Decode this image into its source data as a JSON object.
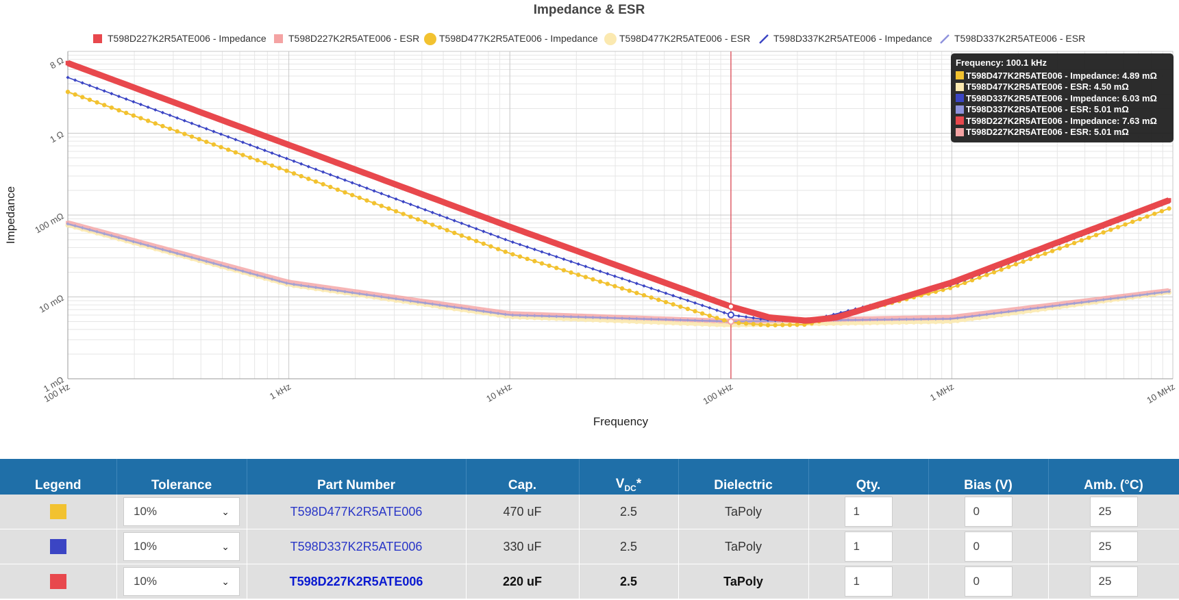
{
  "chart_data": {
    "type": "line",
    "title": "Impedance & ESR",
    "xlabel": "Frequency",
    "ylabel": "Impedance",
    "x_scale": "log",
    "y_scale": "log",
    "x_unit": "Hz",
    "y_unit": "ohm",
    "xlim": [
      100,
      10000000
    ],
    "ylim": [
      0.001,
      10
    ],
    "x_ticks": [
      {
        "value": 100,
        "label": "100 Hz"
      },
      {
        "value": 1000,
        "label": "1 kHz"
      },
      {
        "value": 10000,
        "label": "10 kHz"
      },
      {
        "value": 100000,
        "label": "100 kHz"
      },
      {
        "value": 1000000,
        "label": "1 MHz"
      },
      {
        "value": 10000000,
        "label": "10 MHz"
      }
    ],
    "y_ticks": [
      {
        "value": 0.001,
        "label": "1 mΩ"
      },
      {
        "value": 0.01,
        "label": "10 mΩ"
      },
      {
        "value": 0.1,
        "label": "100 mΩ"
      },
      {
        "value": 1,
        "label": "1 Ω"
      },
      {
        "value": 8,
        "label": "8 Ω"
      }
    ],
    "grid": true,
    "legend_position": "top",
    "crosshair_x": 100100,
    "series": [
      {
        "name": "T598D227K2R5ATE006 - Impedance",
        "color": "#e8484d",
        "marker": "square",
        "x": [
          100,
          1000,
          10000,
          100000,
          150000,
          220000,
          300000,
          1000000,
          10000000
        ],
        "y": [
          7.2,
          0.72,
          0.072,
          0.00763,
          0.0056,
          0.00512,
          0.0056,
          0.015,
          0.158
        ]
      },
      {
        "name": "T598D227K2R5ATE006 - ESR",
        "color": "#f4a3a3",
        "marker": "square",
        "x": [
          100,
          1000,
          10000,
          100000,
          1000000,
          10000000
        ],
        "y": [
          0.08,
          0.015,
          0.0062,
          0.00501,
          0.0056,
          0.012
        ]
      },
      {
        "name": "T598D477K2R5ATE006 - Impedance",
        "color": "#f2c230",
        "marker": "circle",
        "x": [
          100,
          1000,
          10000,
          100000,
          150000,
          220000,
          1000000,
          10000000
        ],
        "y": [
          3.2,
          0.34,
          0.034,
          0.00489,
          0.0045,
          0.0046,
          0.013,
          0.125
        ]
      },
      {
        "name": "T598D477K2R5ATE006 - ESR",
        "color": "#fbe9b0",
        "marker": "circle",
        "x": [
          100,
          1000,
          10000,
          100000,
          1000000,
          10000000
        ],
        "y": [
          0.075,
          0.014,
          0.0057,
          0.0045,
          0.005,
          0.0115
        ]
      },
      {
        "name": "T598D337K2R5ATE006 - Impedance",
        "color": "#3b45c4",
        "marker": "diamond",
        "x": [
          100,
          1000,
          10000,
          100000,
          150000,
          220000,
          1000000,
          10000000
        ],
        "y": [
          4.8,
          0.48,
          0.048,
          0.00603,
          0.0052,
          0.00505,
          0.014,
          0.15
        ]
      },
      {
        "name": "T598D337K2R5ATE006 - ESR",
        "color": "#8e92dc",
        "marker": "diamond",
        "x": [
          100,
          1000,
          10000,
          100000,
          1000000,
          10000000
        ],
        "y": [
          0.078,
          0.0145,
          0.006,
          0.00501,
          0.0054,
          0.0118
        ]
      }
    ]
  },
  "tooltip": {
    "title": "Frequency: 100.1 kHz",
    "rows": [
      {
        "color": "#f2c230",
        "text": "T598D477K2R5ATE006 - Impedance: 4.89 mΩ"
      },
      {
        "color": "#fbe9b0",
        "text": "T598D477K2R5ATE006 - ESR: 4.50 mΩ"
      },
      {
        "color": "#3b45c4",
        "text": "T598D337K2R5ATE006 - Impedance: 6.03 mΩ"
      },
      {
        "color": "#8e92dc",
        "text": "T598D337K2R5ATE006 - ESR: 5.01 mΩ"
      },
      {
        "color": "#e8484d",
        "text": "T598D227K2R5ATE006 - Impedance: 7.63 mΩ"
      },
      {
        "color": "#f4a3a3",
        "text": "T598D227K2R5ATE006 - ESR: 5.01 mΩ"
      }
    ]
  },
  "table": {
    "headers": {
      "legend": "Legend",
      "tolerance": "Tolerance",
      "part_number": "Part Number",
      "cap": "Cap.",
      "vdc_main": "V",
      "vdc_sub": "DC",
      "vdc_mark": "*",
      "dielectric": "Dielectric",
      "qty": "Qty.",
      "bias": "Bias (V)",
      "amb": "Amb. (°C)"
    },
    "rows": [
      {
        "color": "#f2c230",
        "tolerance": "10%",
        "part_number": "T598D477K2R5ATE006",
        "cap": "470 uF",
        "vdc": "2.5",
        "dielectric": "TaPoly",
        "qty": "1",
        "bias": "0",
        "amb": "25"
      },
      {
        "color": "#3b45c4",
        "tolerance": "10%",
        "part_number": "T598D337K2R5ATE006",
        "cap": "330 uF",
        "vdc": "2.5",
        "dielectric": "TaPoly",
        "qty": "1",
        "bias": "0",
        "amb": "25"
      },
      {
        "color": "#e8484d",
        "tolerance": "10%",
        "part_number": "T598D227K2R5ATE006",
        "cap": "220 uF",
        "vdc": "2.5",
        "dielectric": "TaPoly",
        "qty": "1",
        "bias": "0",
        "amb": "25"
      }
    ],
    "caret_icon": "chevron-down-icon"
  }
}
